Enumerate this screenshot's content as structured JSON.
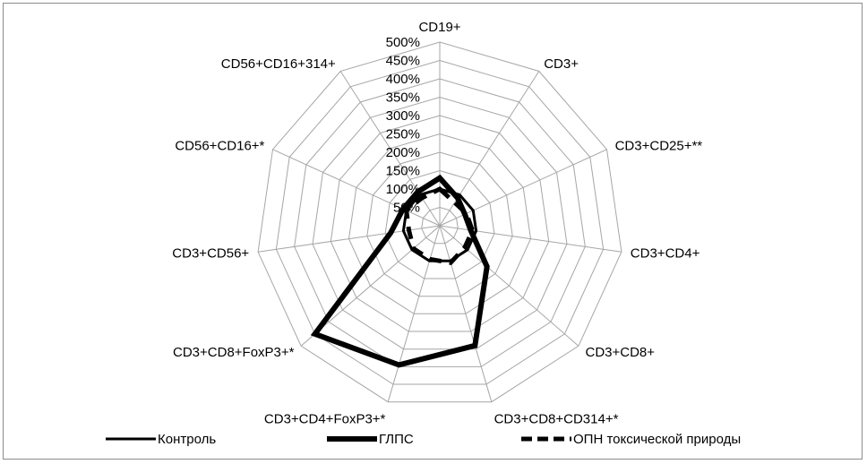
{
  "chart_data": {
    "type": "radar",
    "title": "",
    "axes": [
      "CD19+",
      "CD3+",
      "CD3+CD25+**",
      "CD3+CD4+",
      "CD3+CD8+",
      "CD3+CD8+CD314+*",
      "CD3+CD4+FoxP3+*",
      "CD3+CD8+FoxP3+*",
      "CD3+CD56+",
      "CD56+CD16+*",
      "CD56+CD16+314+"
    ],
    "ticks": [
      "50%",
      "100%",
      "150%",
      "200%",
      "250%",
      "300%",
      "350%",
      "400%",
      "450%",
      "500%"
    ],
    "rmax": 500,
    "grid": true,
    "legend_position": "bottom",
    "series": [
      {
        "name": "Контроль",
        "style": "thin-solid",
        "values": [
          100,
          100,
          100,
          100,
          100,
          100,
          100,
          100,
          100,
          100,
          100
        ]
      },
      {
        "name": "ГЛПС",
        "style": "thick-solid",
        "values": [
          130,
          90,
          75,
          85,
          170,
          340,
          395,
          450,
          135,
          110,
          110
        ]
      },
      {
        "name": "ОПН токсической природы",
        "style": "dashed",
        "values": [
          100,
          75,
          80,
          90,
          90,
          105,
          95,
          95,
          85,
          100,
          90
        ]
      }
    ]
  }
}
